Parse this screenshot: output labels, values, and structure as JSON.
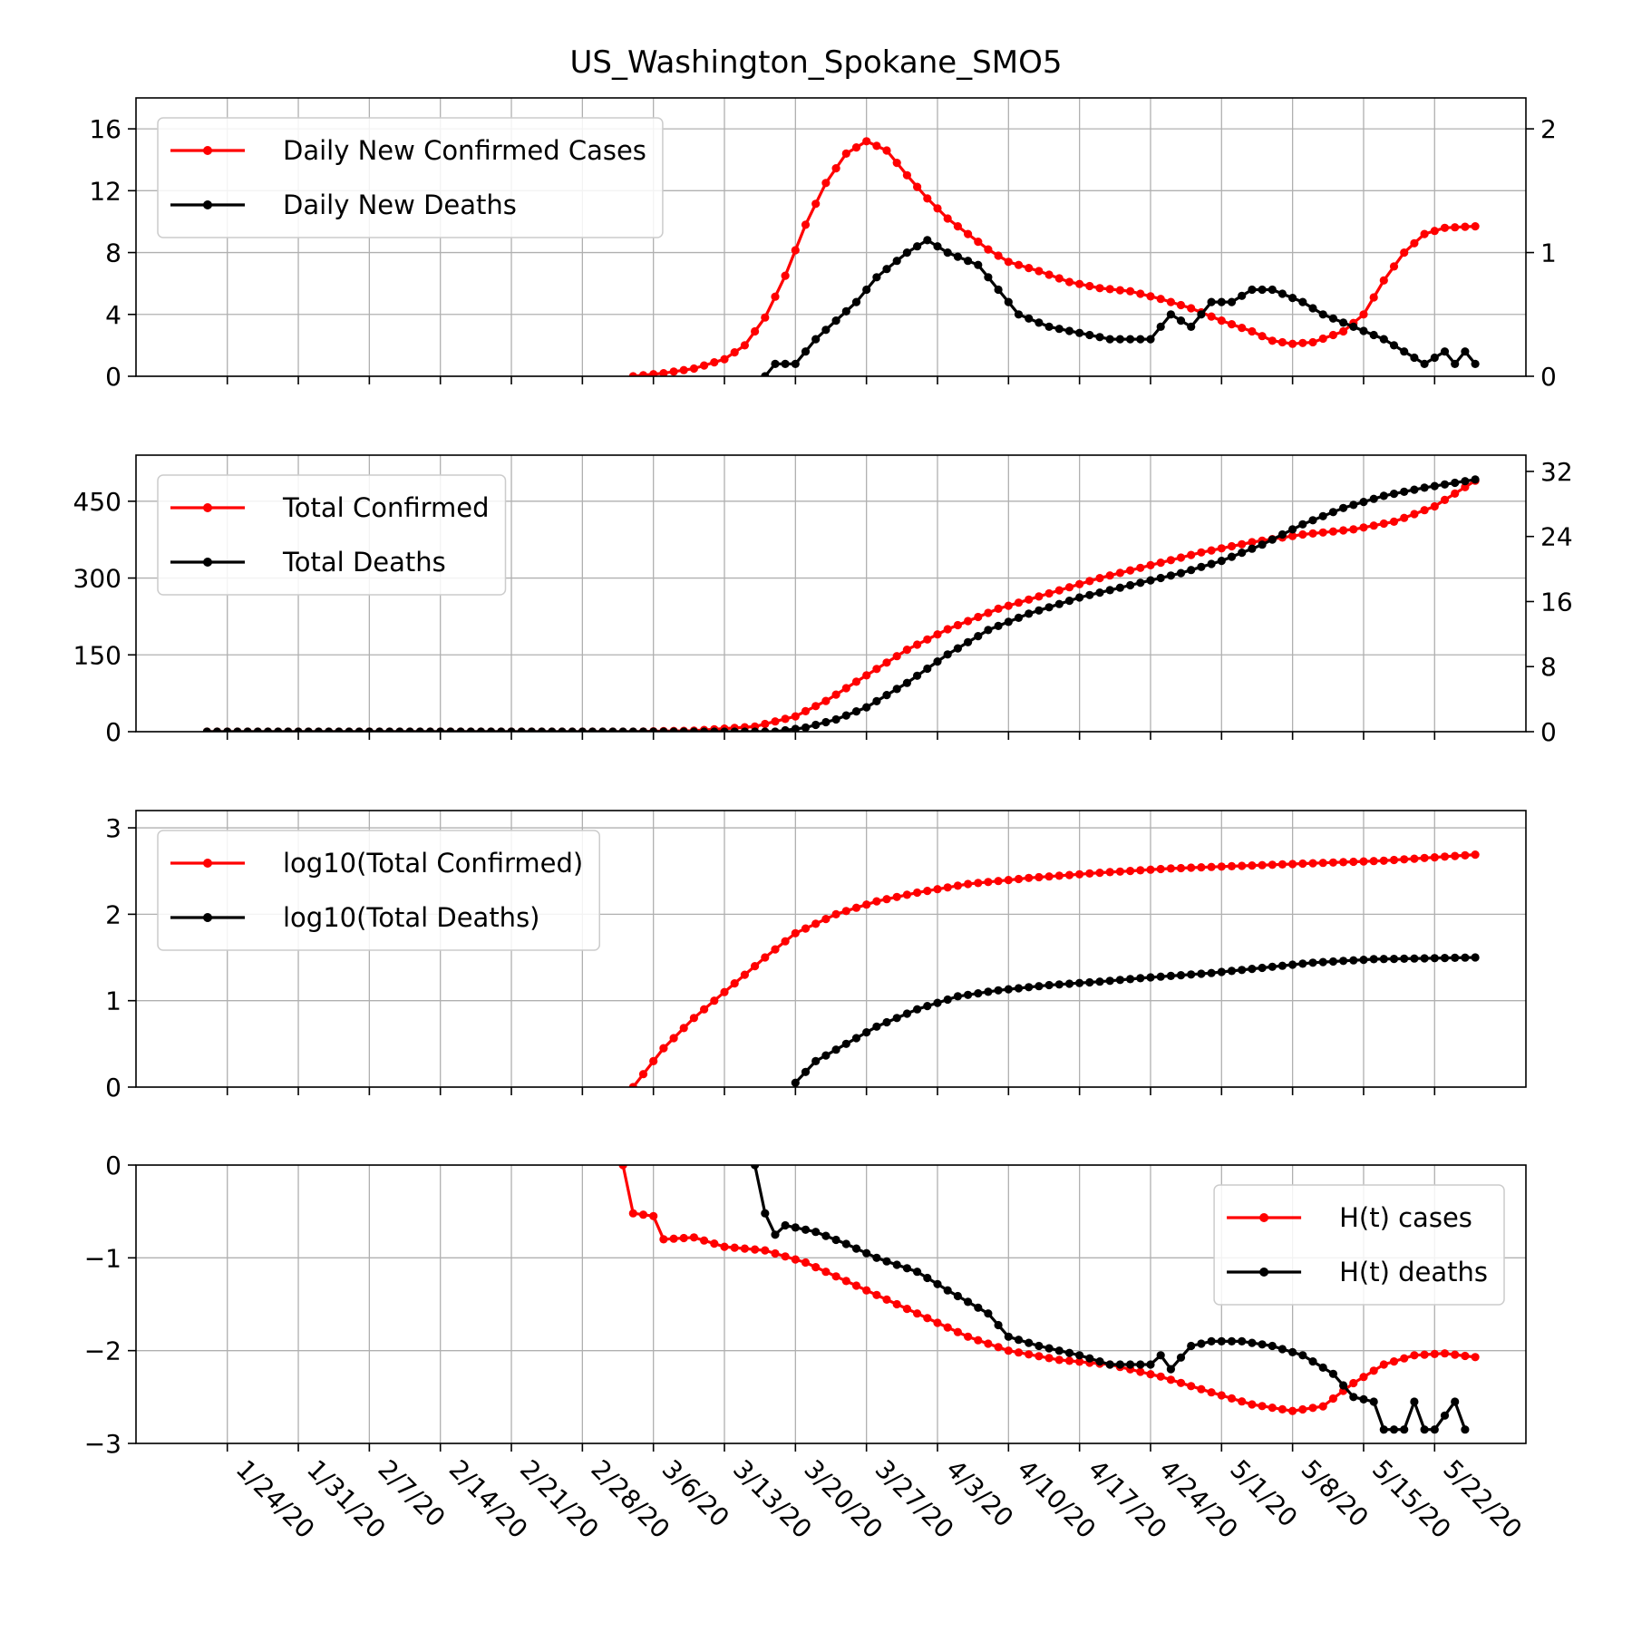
{
  "figure": {
    "title": "US_Washington_Spokane_SMO5"
  },
  "dates": [
    "1/24/20",
    "1/31/20",
    "2/7/20",
    "2/14/20",
    "2/21/20",
    "2/28/20",
    "3/6/20",
    "3/13/20",
    "3/20/20",
    "3/27/20",
    "4/3/20",
    "4/10/20",
    "4/17/20",
    "4/24/20",
    "5/1/20",
    "5/8/20",
    "5/15/20",
    "5/22/20"
  ],
  "colors": {
    "cases": "#ff0000",
    "deaths": "#000000",
    "grid": "#b0b0b0"
  },
  "chart_data": [
    {
      "id": "daily",
      "type": "line",
      "x_start": "1/22/20",
      "x_end": "5/26/20",
      "left_ticks": [
        "0",
        "4",
        "8",
        "12",
        "16"
      ],
      "left_ylim": [
        0,
        18
      ],
      "right_ticks": [
        "0",
        "1",
        "2"
      ],
      "right_ylim": [
        0,
        2.25
      ],
      "legend_position": "upper-left",
      "series": [
        {
          "name": "Daily New Confirmed Cases",
          "axis": "left",
          "color": "#ff0000",
          "points": [
            [
              "3/4/20",
              0
            ],
            [
              "3/7/20",
              0.2
            ],
            [
              "3/10/20",
              0.5
            ],
            [
              "3/13/20",
              1.1
            ],
            [
              "3/15/20",
              2.0
            ],
            [
              "3/17/20",
              3.8
            ],
            [
              "3/19/20",
              6.5
            ],
            [
              "3/21/20",
              9.8
            ],
            [
              "3/23/20",
              12.5
            ],
            [
              "3/25/20",
              14.4
            ],
            [
              "3/27/20",
              15.2
            ],
            [
              "3/29/20",
              14.6
            ],
            [
              "3/31/20",
              13.0
            ],
            [
              "4/2/20",
              11.5
            ],
            [
              "4/4/20",
              10.2
            ],
            [
              "4/6/20",
              9.2
            ],
            [
              "4/8/20",
              8.2
            ],
            [
              "4/10/20",
              7.4
            ],
            [
              "4/13/20",
              6.8
            ],
            [
              "4/16/20",
              6.1
            ],
            [
              "4/19/20",
              5.7
            ],
            [
              "4/22/20",
              5.5
            ],
            [
              "4/25/20",
              5.0
            ],
            [
              "4/28/20",
              4.4
            ],
            [
              "5/1/20",
              3.6
            ],
            [
              "5/4/20",
              2.9
            ],
            [
              "5/6/20",
              2.3
            ],
            [
              "5/8/20",
              2.1
            ],
            [
              "5/10/20",
              2.2
            ],
            [
              "5/13/20",
              2.9
            ],
            [
              "5/15/20",
              4.0
            ],
            [
              "5/17/20",
              6.2
            ],
            [
              "5/19/20",
              8.0
            ],
            [
              "5/21/20",
              9.2
            ],
            [
              "5/23/20",
              9.6
            ],
            [
              "5/26/20",
              9.7
            ]
          ]
        },
        {
          "name": "Daily New Deaths",
          "axis": "right",
          "color": "#000000",
          "points": [
            [
              "3/17/20",
              0
            ],
            [
              "3/18/20",
              0.1
            ],
            [
              "3/20/20",
              0.1
            ],
            [
              "3/22/20",
              0.3
            ],
            [
              "3/24/20",
              0.45
            ],
            [
              "3/26/20",
              0.6
            ],
            [
              "3/28/20",
              0.8
            ],
            [
              "3/31/20",
              1.0
            ],
            [
              "4/2/20",
              1.1
            ],
            [
              "4/4/20",
              1.0
            ],
            [
              "4/7/20",
              0.9
            ],
            [
              "4/9/20",
              0.7
            ],
            [
              "4/11/20",
              0.5
            ],
            [
              "4/14/20",
              0.4
            ],
            [
              "4/17/20",
              0.35
            ],
            [
              "4/20/20",
              0.3
            ],
            [
              "4/24/20",
              0.3
            ],
            [
              "4/26/20",
              0.5
            ],
            [
              "4/28/20",
              0.4
            ],
            [
              "4/30/20",
              0.6
            ],
            [
              "5/2/20",
              0.6
            ],
            [
              "5/4/20",
              0.7
            ],
            [
              "5/6/20",
              0.7
            ],
            [
              "5/9/20",
              0.6
            ],
            [
              "5/11/20",
              0.5
            ],
            [
              "5/14/20",
              0.4
            ],
            [
              "5/17/20",
              0.3
            ],
            [
              "5/19/20",
              0.2
            ],
            [
              "5/21/20",
              0.1
            ],
            [
              "5/23/20",
              0.2
            ],
            [
              "5/24/20",
              0.1
            ],
            [
              "5/25/20",
              0.2
            ],
            [
              "5/26/20",
              0.1
            ]
          ]
        }
      ]
    },
    {
      "id": "totals",
      "type": "line",
      "x_start": "1/22/20",
      "x_end": "5/26/20",
      "left_ticks": [
        "0",
        "150",
        "300",
        "450"
      ],
      "left_ylim": [
        0,
        540
      ],
      "right_ticks": [
        "0",
        "8",
        "16",
        "24",
        "32"
      ],
      "right_ylim": [
        0,
        34
      ],
      "legend_position": "upper-left",
      "series": [
        {
          "name": "Total Confirmed",
          "axis": "left",
          "color": "#ff0000",
          "points": [
            [
              "1/22/20",
              0
            ],
            [
              "3/4/20",
              0
            ],
            [
              "3/10/20",
              2
            ],
            [
              "3/16/20",
              10
            ],
            [
              "3/20/20",
              30
            ],
            [
              "3/23/20",
              60
            ],
            [
              "3/27/20",
              110
            ],
            [
              "3/31/20",
              160
            ],
            [
              "4/4/20",
              200
            ],
            [
              "4/9/20",
              240
            ],
            [
              "4/14/20",
              270
            ],
            [
              "4/19/20",
              300
            ],
            [
              "4/24/20",
              325
            ],
            [
              "4/29/20",
              350
            ],
            [
              "5/4/20",
              370
            ],
            [
              "5/9/20",
              385
            ],
            [
              "5/14/20",
              395
            ],
            [
              "5/18/20",
              410
            ],
            [
              "5/22/20",
              440
            ],
            [
              "5/26/20",
              490
            ]
          ]
        },
        {
          "name": "Total Deaths",
          "axis": "right",
          "color": "#000000",
          "points": [
            [
              "1/22/20",
              0
            ],
            [
              "3/18/20",
              0
            ],
            [
              "3/21/20",
              0.5
            ],
            [
              "3/24/20",
              1.5
            ],
            [
              "3/27/20",
              3
            ],
            [
              "3/31/20",
              6
            ],
            [
              "4/4/20",
              9.5
            ],
            [
              "4/8/20",
              12.5
            ],
            [
              "4/12/20",
              14.5
            ],
            [
              "4/17/20",
              16.5
            ],
            [
              "4/22/20",
              18
            ],
            [
              "4/27/20",
              19.5
            ],
            [
              "5/1/20",
              21
            ],
            [
              "5/5/20",
              23
            ],
            [
              "5/9/20",
              25.5
            ],
            [
              "5/13/20",
              27.5
            ],
            [
              "5/17/20",
              29
            ],
            [
              "5/21/20",
              30
            ],
            [
              "5/26/20",
              31
            ]
          ]
        }
      ]
    },
    {
      "id": "log",
      "type": "line",
      "x_start": "1/22/20",
      "x_end": "5/26/20",
      "left_ticks": [
        "0",
        "1",
        "2",
        "3"
      ],
      "left_ylim": [
        0,
        3.2
      ],
      "legend_position": "upper-left",
      "series": [
        {
          "name": "log10(Total Confirmed)",
          "axis": "left",
          "color": "#ff0000",
          "points": [
            [
              "3/4/20",
              0
            ],
            [
              "3/7/20",
              0.45
            ],
            [
              "3/10/20",
              0.8
            ],
            [
              "3/14/20",
              1.2
            ],
            [
              "3/17/20",
              1.5
            ],
            [
              "3/20/20",
              1.78
            ],
            [
              "3/24/20",
              2.0
            ],
            [
              "3/28/20",
              2.15
            ],
            [
              "4/1/20",
              2.25
            ],
            [
              "4/6/20",
              2.35
            ],
            [
              "4/12/20",
              2.42
            ],
            [
              "4/19/20",
              2.48
            ],
            [
              "4/26/20",
              2.53
            ],
            [
              "5/3/20",
              2.56
            ],
            [
              "5/10/20",
              2.59
            ],
            [
              "5/17/20",
              2.62
            ],
            [
              "5/26/20",
              2.69
            ]
          ]
        },
        {
          "name": "log10(Total Deaths)",
          "axis": "left",
          "color": "#000000",
          "points": [
            [
              "3/20/20",
              0.05
            ],
            [
              "3/22/20",
              0.3
            ],
            [
              "3/25/20",
              0.5
            ],
            [
              "3/28/20",
              0.7
            ],
            [
              "4/1/20",
              0.9
            ],
            [
              "4/5/20",
              1.05
            ],
            [
              "4/9/20",
              1.12
            ],
            [
              "4/14/20",
              1.18
            ],
            [
              "4/19/20",
              1.22
            ],
            [
              "4/24/20",
              1.27
            ],
            [
              "4/30/20",
              1.32
            ],
            [
              "5/5/20",
              1.38
            ],
            [
              "5/10/20",
              1.44
            ],
            [
              "5/16/20",
              1.48
            ],
            [
              "5/26/20",
              1.5
            ]
          ]
        }
      ]
    },
    {
      "id": "hazard",
      "type": "line",
      "x_start": "1/22/20",
      "x_end": "5/26/20",
      "left_ticks": [
        "−3",
        "−2",
        "−1",
        "0"
      ],
      "left_ylim": [
        -3,
        0
      ],
      "legend_position": "upper-right",
      "series": [
        {
          "name": "H(t) cases",
          "axis": "left",
          "color": "#ff0000",
          "points": [
            [
              "3/3/20",
              0
            ],
            [
              "3/4/20",
              -0.52
            ],
            [
              "3/6/20",
              -0.55
            ],
            [
              "3/7/20",
              -0.8
            ],
            [
              "3/10/20",
              -0.78
            ],
            [
              "3/13/20",
              -0.88
            ],
            [
              "3/17/20",
              -0.92
            ],
            [
              "3/21/20",
              -1.05
            ],
            [
              "3/25/20",
              -1.25
            ],
            [
              "3/29/20",
              -1.45
            ],
            [
              "4/2/20",
              -1.65
            ],
            [
              "4/6/20",
              -1.85
            ],
            [
              "4/10/20",
              -2.0
            ],
            [
              "4/15/20",
              -2.1
            ],
            [
              "4/20/20",
              -2.15
            ],
            [
              "4/25/20",
              -2.28
            ],
            [
              "4/30/20",
              -2.45
            ],
            [
              "5/4/20",
              -2.58
            ],
            [
              "5/8/20",
              -2.65
            ],
            [
              "5/11/20",
              -2.6
            ],
            [
              "5/14/20",
              -2.35
            ],
            [
              "5/17/20",
              -2.15
            ],
            [
              "5/20/20",
              -2.05
            ],
            [
              "5/23/20",
              -2.03
            ],
            [
              "5/26/20",
              -2.07
            ]
          ]
        },
        {
          "name": "H(t) deaths",
          "axis": "left",
          "color": "#000000",
          "points": [
            [
              "3/16/20",
              0
            ],
            [
              "3/17/20",
              -0.52
            ],
            [
              "3/18/20",
              -0.75
            ],
            [
              "3/19/20",
              -0.65
            ],
            [
              "3/22/20",
              -0.72
            ],
            [
              "3/25/20",
              -0.85
            ],
            [
              "3/28/20",
              -1.0
            ],
            [
              "4/1/20",
              -1.15
            ],
            [
              "4/4/20",
              -1.35
            ],
            [
              "4/8/20",
              -1.6
            ],
            [
              "4/10/20",
              -1.85
            ],
            [
              "4/13/20",
              -1.95
            ],
            [
              "4/17/20",
              -2.05
            ],
            [
              "4/20/20",
              -2.15
            ],
            [
              "4/24/20",
              -2.15
            ],
            [
              "4/25/20",
              -2.05
            ],
            [
              "4/26/20",
              -2.2
            ],
            [
              "4/28/20",
              -1.95
            ],
            [
              "4/30/20",
              -1.9
            ],
            [
              "5/3/20",
              -1.9
            ],
            [
              "5/6/20",
              -1.95
            ],
            [
              "5/9/20",
              -2.05
            ],
            [
              "5/12/20",
              -2.25
            ],
            [
              "5/14/20",
              -2.5
            ],
            [
              "5/16/20",
              -2.55
            ],
            [
              "5/17/20",
              -2.85
            ],
            [
              "5/19/20",
              -2.85
            ],
            [
              "5/20/20",
              -2.55
            ],
            [
              "5/21/20",
              -2.85
            ],
            [
              "5/22/20",
              -2.85
            ],
            [
              "5/24/20",
              -2.55
            ],
            [
              "5/25/20",
              -2.85
            ]
          ]
        }
      ]
    }
  ]
}
